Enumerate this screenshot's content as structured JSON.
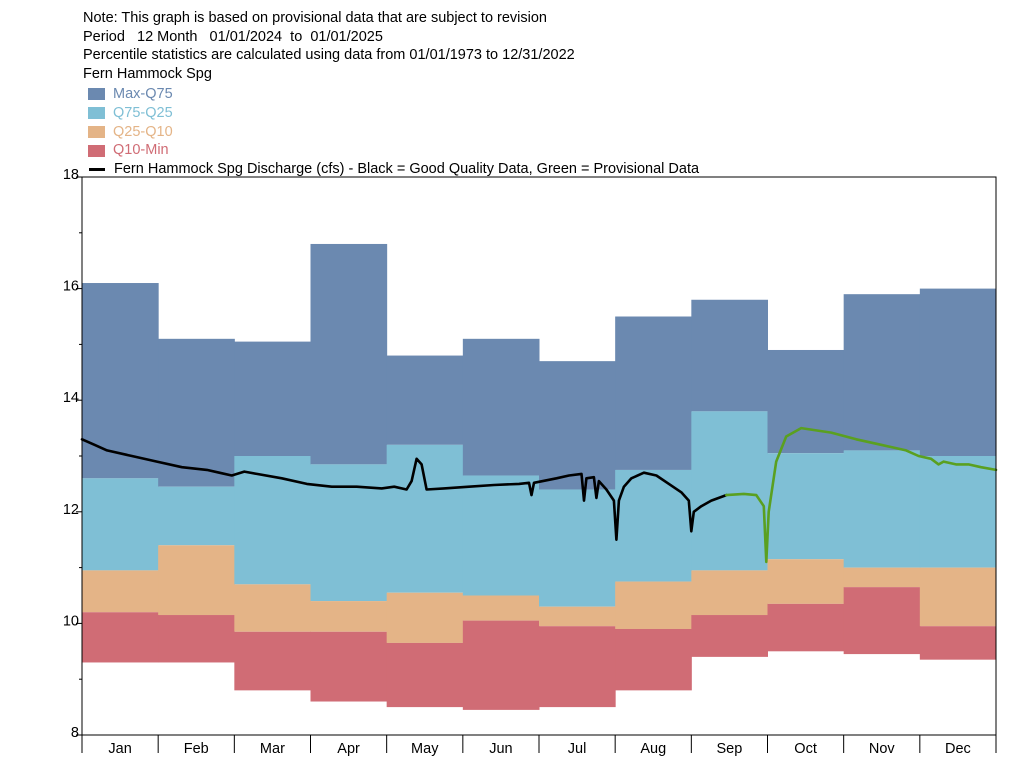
{
  "header": {
    "note": "Note: This graph is based on provisional data that are subject to revision",
    "period": "Period   12 Month   01/01/2024  to  01/01/2025",
    "percentile": "Percentile statistics are calculated using data from 01/01/1973 to 12/31/2022",
    "site": "Fern Hammock Spg"
  },
  "legend": {
    "items": [
      {
        "label": "Max-Q75",
        "color": "#6b89b0"
      },
      {
        "label": "Q75-Q25",
        "color": "#7fbfd5"
      },
      {
        "label": "Q25-Q10",
        "color": "#e4b487"
      },
      {
        "label": "Q10-Min",
        "color": "#d06c75"
      }
    ],
    "line_label": "Fern Hammock Spg Discharge (cfs) - Black = Good Quality Data, Green = Provisional Data"
  },
  "chart_data": {
    "type": "area",
    "x_categories": [
      "Jan",
      "Feb",
      "Mar",
      "Apr",
      "May",
      "Jun",
      "Jul",
      "Aug",
      "Sep",
      "Oct",
      "Nov",
      "Dec"
    ],
    "ylim": [
      8,
      18
    ],
    "y_ticks": [
      8,
      10,
      12,
      14,
      16,
      18
    ],
    "bands": {
      "max": [
        16.1,
        15.1,
        15.05,
        16.8,
        14.8,
        15.1,
        14.7,
        15.5,
        15.8,
        14.9,
        15.9,
        16.0
      ],
      "q75": [
        12.6,
        12.45,
        13.0,
        12.85,
        13.2,
        12.65,
        12.4,
        12.75,
        13.8,
        13.05,
        13.1,
        13.0
      ],
      "q25": [
        10.95,
        11.4,
        10.7,
        10.4,
        10.55,
        10.5,
        10.3,
        10.75,
        10.95,
        11.15,
        11.0,
        11.0
      ],
      "q10": [
        10.2,
        10.15,
        9.85,
        9.85,
        9.65,
        10.05,
        9.95,
        9.9,
        10.15,
        10.35,
        10.65,
        9.95
      ],
      "min": [
        9.3,
        9.3,
        8.8,
        8.6,
        8.5,
        8.45,
        8.5,
        8.8,
        9.4,
        9.5,
        9.45,
        9.35
      ]
    },
    "colors": {
      "max_q75": "#6b89b0",
      "q75_q25": "#7fbfd5",
      "q25_q10": "#e4b487",
      "q10_min": "#d06c75",
      "good_quality": "#000000",
      "provisional": "#5aa020"
    },
    "series": [
      {
        "quality": "good",
        "points": [
          [
            0,
            13.3
          ],
          [
            5,
            13.2
          ],
          [
            10,
            13.1
          ],
          [
            20,
            13.0
          ],
          [
            30,
            12.9
          ],
          [
            40,
            12.8
          ],
          [
            50,
            12.75
          ],
          [
            55,
            12.7
          ],
          [
            60,
            12.65
          ],
          [
            65,
            12.72
          ],
          [
            70,
            12.68
          ],
          [
            80,
            12.6
          ],
          [
            90,
            12.5
          ],
          [
            100,
            12.45
          ],
          [
            110,
            12.45
          ],
          [
            120,
            12.42
          ],
          [
            125,
            12.45
          ],
          [
            130,
            12.4
          ],
          [
            132,
            12.55
          ],
          [
            134,
            12.95
          ],
          [
            136,
            12.85
          ],
          [
            138,
            12.4
          ],
          [
            145,
            12.42
          ],
          [
            155,
            12.45
          ],
          [
            165,
            12.48
          ],
          [
            175,
            12.5
          ],
          [
            179,
            12.52
          ],
          [
            180,
            12.3
          ],
          [
            181,
            12.52
          ],
          [
            190,
            12.6
          ],
          [
            195,
            12.65
          ],
          [
            200,
            12.68
          ],
          [
            201,
            12.2
          ],
          [
            202,
            12.6
          ],
          [
            205,
            12.62
          ],
          [
            206,
            12.25
          ],
          [
            207,
            12.55
          ],
          [
            210,
            12.4
          ],
          [
            213,
            12.2
          ],
          [
            214,
            11.5
          ],
          [
            215,
            12.2
          ],
          [
            217,
            12.45
          ],
          [
            220,
            12.6
          ],
          [
            225,
            12.7
          ],
          [
            230,
            12.65
          ],
          [
            235,
            12.5
          ],
          [
            240,
            12.35
          ],
          [
            243,
            12.2
          ],
          [
            244,
            11.65
          ],
          [
            245,
            12.0
          ],
          [
            248,
            12.1
          ],
          [
            252,
            12.2
          ],
          [
            258,
            12.3
          ]
        ]
      },
      {
        "quality": "provisional",
        "points": [
          [
            258,
            12.3
          ],
          [
            265,
            12.32
          ],
          [
            270,
            12.3
          ],
          [
            273,
            12.1
          ],
          [
            274,
            11.1
          ],
          [
            275,
            12.0
          ],
          [
            278,
            12.9
          ],
          [
            282,
            13.35
          ],
          [
            288,
            13.5
          ],
          [
            300,
            13.42
          ],
          [
            310,
            13.3
          ],
          [
            320,
            13.2
          ],
          [
            330,
            13.1
          ],
          [
            335,
            13.0
          ],
          [
            340,
            12.95
          ],
          [
            343,
            12.85
          ],
          [
            345,
            12.9
          ],
          [
            350,
            12.85
          ],
          [
            355,
            12.85
          ],
          [
            360,
            12.8
          ],
          [
            366,
            12.75
          ]
        ]
      }
    ]
  }
}
